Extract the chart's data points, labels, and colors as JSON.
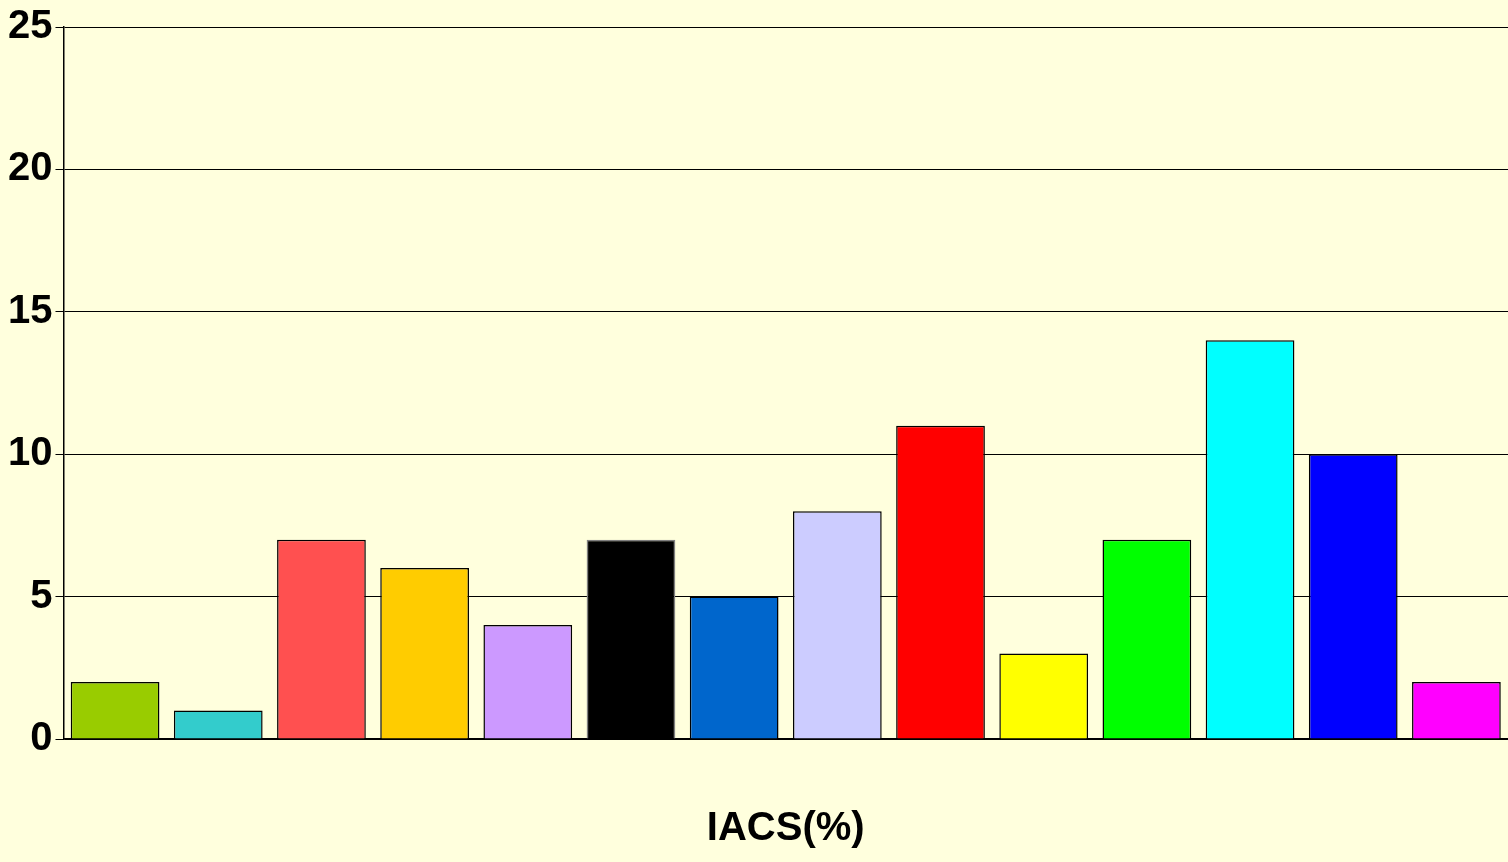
{
  "chart_data": {
    "type": "bar",
    "xlabel": "IACS(%)",
    "categories": [
      null,
      null,
      null,
      null,
      null,
      null,
      null,
      null,
      null,
      null,
      null,
      null,
      null,
      null
    ],
    "values": [
      2,
      1,
      7,
      6,
      4,
      7,
      5,
      8,
      11,
      3,
      7,
      14,
      10,
      2
    ],
    "colors": [
      "#99cc00",
      "#33cccc",
      "#ff5050",
      "#ffcc00",
      "#cc99ff",
      "#000000",
      "#0066cc",
      "#ccccff",
      "#ff0000",
      "#ffff00",
      "#00ff00",
      "#00ffff",
      "#0000ff",
      "#ff00ff"
    ],
    "ylim": [
      0,
      25
    ],
    "yticks": [
      0,
      5,
      10,
      15,
      20,
      25
    ],
    "grid": "y",
    "legend": false
  }
}
